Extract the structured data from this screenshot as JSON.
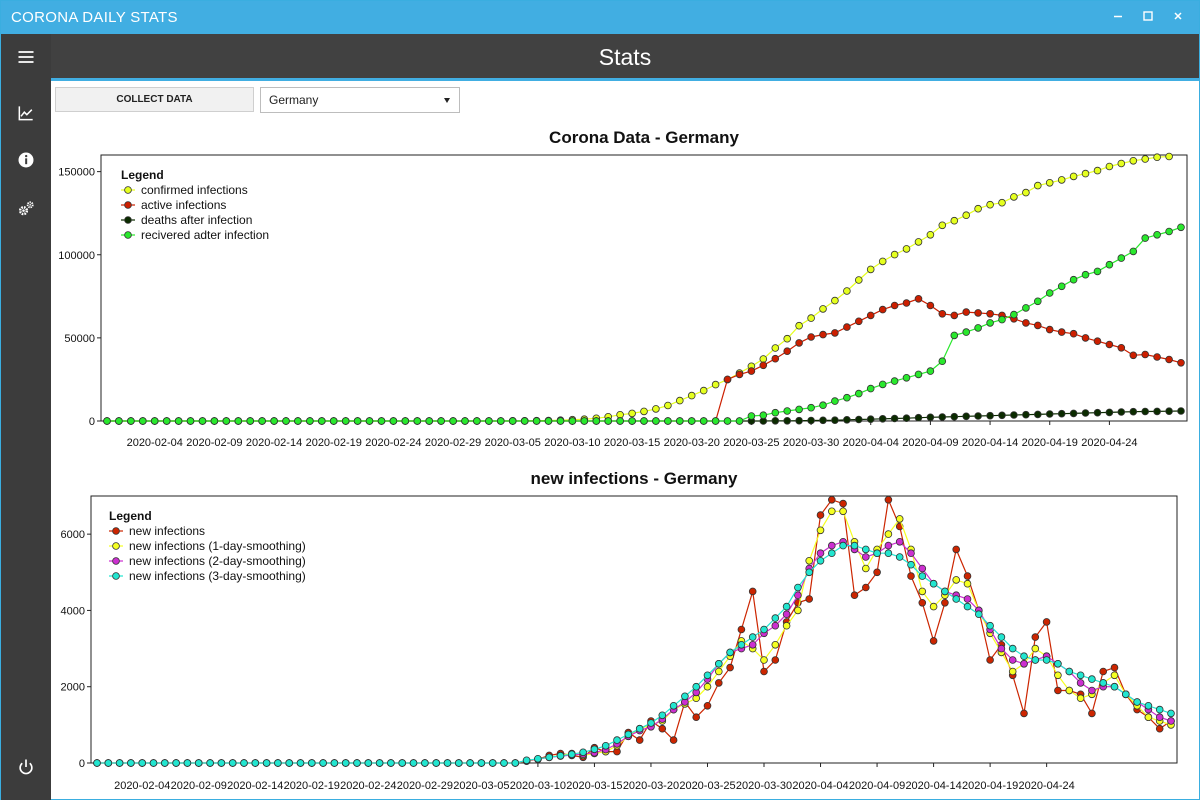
{
  "app": {
    "title": "CORONA DAILY STATS"
  },
  "window_controls": {
    "minimize_icon": "minimize-icon",
    "maximize_icon": "maximize-icon",
    "close_icon": "close-icon"
  },
  "sidebar": {
    "icons": [
      "menu-icon",
      "chart-line-icon",
      "info-icon",
      "settings-icon",
      "power-icon"
    ]
  },
  "header": {
    "title": "Stats"
  },
  "toolbar": {
    "collect_label": "COLLECT DATA",
    "country_value": "Germany"
  },
  "colors": {
    "titlebar": "#41aee2",
    "sidebar": "#3c3c3c",
    "header": "#414141",
    "confirmed": "#e5ff1f",
    "active": "#cc1f00",
    "deaths": "#0b2b00",
    "recovered": "#29e82d",
    "new": "#cc2500",
    "smooth1": "#f5ff22",
    "smooth2": "#cc2fd0",
    "smooth3": "#22e6d0"
  },
  "chart_data": [
    {
      "type": "line",
      "title": "Corona Data - Germany",
      "legend_title": "Legend",
      "legend_position": "top-left",
      "grid": false,
      "x_ticks": [
        "2020-02-04",
        "2020-02-09",
        "2020-02-14",
        "2020-02-19",
        "2020-02-24",
        "2020-02-29",
        "2020-03-05",
        "2020-03-10",
        "2020-03-15",
        "2020-03-20",
        "2020-03-25",
        "2020-03-30",
        "2020-04-04",
        "2020-04-09",
        "2020-04-14",
        "2020-04-19",
        "2020-04-24"
      ],
      "x_start": "2020-01-31",
      "y_ticks": [
        "0",
        "50000",
        "100000",
        "150000"
      ],
      "ylim": [
        0,
        160000
      ],
      "series": [
        {
          "name": "confirmed infections",
          "color": "#e5ff1f",
          "values": [
            0,
            0,
            0,
            0,
            0,
            0,
            0,
            0,
            0,
            0,
            0,
            0,
            0,
            0,
            0,
            0,
            0,
            0,
            0,
            0,
            0,
            0,
            0,
            0,
            0,
            0,
            0,
            0,
            0,
            0,
            0,
            0,
            0,
            0,
            100,
            150,
            200,
            300,
            500,
            800,
            1100,
            1600,
            2500,
            3700,
            4600,
            5800,
            7300,
            9300,
            12300,
            15300,
            18300,
            21900,
            24900,
            28900,
            32900,
            37300,
            43900,
            49500,
            57300,
            61900,
            67400,
            72400,
            78200,
            84800,
            91200,
            96000,
            100100,
            103500,
            107700,
            112000,
            117700,
            120500,
            123800,
            127700,
            130100,
            131300,
            134800,
            137400,
            141600,
            143300,
            145000,
            147100,
            148800,
            150600,
            153100,
            154900,
            156500,
            157600,
            158700,
            159100
          ]
        },
        {
          "name": "active infections",
          "color": "#cc1f00",
          "values": [
            0,
            0,
            0,
            0,
            0,
            0,
            0,
            0,
            0,
            0,
            0,
            0,
            0,
            0,
            0,
            0,
            0,
            0,
            0,
            0,
            0,
            0,
            0,
            0,
            0,
            0,
            0,
            0,
            0,
            0,
            0,
            0,
            0,
            0,
            0,
            0,
            0,
            0,
            0,
            0,
            0,
            0,
            0,
            0,
            0,
            0,
            0,
            0,
            0,
            0,
            0,
            0,
            25000,
            28000,
            30000,
            33500,
            37500,
            42000,
            47000,
            50500,
            52000,
            53000,
            56500,
            60000,
            63500,
            67000,
            69500,
            71000,
            73500,
            69500,
            64500,
            63500,
            65500,
            65000,
            64500,
            63500,
            61500,
            59000,
            57500,
            55000,
            53500,
            52500,
            50000,
            48000,
            46000,
            44000,
            39500,
            40000,
            38500,
            37000,
            35000
          ]
        },
        {
          "name": "deaths after infection",
          "color": "#0b2b00",
          "values": [
            0,
            0,
            0,
            0,
            0,
            0,
            0,
            0,
            0,
            0,
            0,
            0,
            0,
            0,
            0,
            0,
            0,
            0,
            0,
            0,
            0,
            0,
            0,
            0,
            0,
            0,
            0,
            0,
            0,
            0,
            0,
            0,
            0,
            0,
            0,
            0,
            0,
            0,
            0,
            0,
            0,
            0,
            0,
            0,
            0,
            0,
            0,
            0,
            0,
            0,
            0,
            0,
            0,
            0,
            0,
            0,
            100,
            150,
            200,
            300,
            400,
            500,
            700,
            900,
            1100,
            1300,
            1500,
            1700,
            2000,
            2200,
            2400,
            2600,
            2800,
            3000,
            3200,
            3400,
            3600,
            3800,
            4000,
            4200,
            4400,
            4600,
            4800,
            5000,
            5200,
            5400,
            5600,
            5700,
            5800,
            5900,
            6000
          ]
        },
        {
          "name": "recivered adter infection",
          "color": "#29e82d",
          "values": [
            0,
            0,
            0,
            0,
            0,
            0,
            0,
            0,
            0,
            0,
            0,
            0,
            0,
            0,
            0,
            0,
            0,
            0,
            0,
            0,
            0,
            0,
            0,
            0,
            0,
            0,
            0,
            0,
            0,
            0,
            0,
            0,
            0,
            0,
            0,
            0,
            0,
            0,
            0,
            0,
            0,
            0,
            0,
            0,
            0,
            0,
            0,
            0,
            0,
            0,
            0,
            0,
            0,
            0,
            3000,
            3500,
            5000,
            6000,
            7000,
            8000,
            9500,
            12000,
            14000,
            16500,
            19500,
            22000,
            24000,
            26000,
            28000,
            30000,
            36000,
            51500,
            53500,
            56000,
            59000,
            61000,
            64000,
            68000,
            72000,
            77000,
            81000,
            85000,
            88000,
            90000,
            94000,
            98000,
            102000,
            110000,
            112000,
            114000,
            116500
          ]
        }
      ]
    },
    {
      "type": "line",
      "title": "new infections - Germany",
      "legend_title": "Legend",
      "legend_position": "top-left",
      "grid": false,
      "x_ticks": [
        "2020-02-04",
        "2020-02-09",
        "2020-02-14",
        "2020-02-19",
        "2020-02-24",
        "2020-02-29",
        "2020-03-05",
        "2020-03-10",
        "2020-03-15",
        "2020-03-20",
        "2020-03-25",
        "2020-03-30",
        "2020-04-04",
        "2020-04-09",
        "2020-04-14",
        "2020-04-19",
        "2020-04-24"
      ],
      "x_start": "2020-01-31",
      "y_ticks": [
        "0",
        "2000",
        "4000",
        "6000"
      ],
      "ylim": [
        0,
        7000
      ],
      "series": [
        {
          "name": "new infections",
          "color": "#cc2500",
          "values": [
            0,
            0,
            0,
            0,
            0,
            0,
            0,
            0,
            0,
            0,
            0,
            0,
            0,
            0,
            0,
            0,
            0,
            0,
            0,
            0,
            0,
            0,
            0,
            0,
            0,
            0,
            0,
            0,
            0,
            0,
            0,
            0,
            0,
            0,
            0,
            0,
            0,
            0,
            50,
            100,
            200,
            250,
            200,
            150,
            400,
            300,
            300,
            800,
            600,
            1100,
            900,
            600,
            1600,
            1200,
            1500,
            2100,
            2500,
            3500,
            4500,
            2400,
            2700,
            3700,
            4200,
            4300,
            6500,
            6900,
            6800,
            4400,
            4600,
            5000,
            6900,
            6200,
            4900,
            4200,
            3200,
            4200,
            5600,
            4900,
            4000,
            2700,
            3100,
            2300,
            1300,
            3300,
            3700,
            1900,
            1900,
            1800,
            1300,
            2400,
            2500,
            1800,
            1400,
            1200,
            900,
            1100
          ]
        },
        {
          "name": "new infections (1-day-smoothing)",
          "color": "#f5ff22",
          "values": [
            0,
            0,
            0,
            0,
            0,
            0,
            0,
            0,
            0,
            0,
            0,
            0,
            0,
            0,
            0,
            0,
            0,
            0,
            0,
            0,
            0,
            0,
            0,
            0,
            0,
            0,
            0,
            0,
            0,
            0,
            0,
            0,
            0,
            0,
            0,
            0,
            0,
            0,
            50,
            100,
            150,
            200,
            250,
            200,
            250,
            300,
            450,
            700,
            900,
            1000,
            1100,
            1400,
            1550,
            1700,
            2000,
            2400,
            2800,
            3200,
            3000,
            2700,
            3100,
            3600,
            4000,
            5300,
            6100,
            6600,
            6600,
            5800,
            5100,
            5600,
            6000,
            6400,
            5600,
            4500,
            4100,
            4400,
            4800,
            4700,
            4000,
            3400,
            2900,
            2400,
            2600,
            3000,
            2800,
            2300,
            1900,
            1700,
            1800,
            2100,
            2300,
            1800,
            1500,
            1200,
            1100,
            1000
          ]
        },
        {
          "name": "new infections (2-day-smoothing)",
          "color": "#cc2fd0",
          "values": [
            0,
            0,
            0,
            0,
            0,
            0,
            0,
            0,
            0,
            0,
            0,
            0,
            0,
            0,
            0,
            0,
            0,
            0,
            0,
            0,
            0,
            0,
            0,
            0,
            0,
            0,
            0,
            0,
            0,
            0,
            0,
            0,
            0,
            0,
            0,
            0,
            0,
            0,
            60,
            100,
            150,
            180,
            210,
            230,
            270,
            350,
            500,
            700,
            850,
            950,
            1150,
            1400,
            1600,
            1850,
            2200,
            2600,
            2900,
            3000,
            3100,
            3400,
            3600,
            3900,
            4400,
            5100,
            5500,
            5700,
            5800,
            5600,
            5400,
            5500,
            5700,
            5800,
            5500,
            5100,
            4700,
            4500,
            4400,
            4300,
            4000,
            3500,
            3000,
            2700,
            2600,
            2700,
            2800,
            2600,
            2400,
            2100,
            1900,
            2000,
            2000,
            1800,
            1600,
            1400,
            1200,
            1100
          ]
        },
        {
          "name": "new infections (3-day-smoothing)",
          "color": "#22e6d0",
          "values": [
            0,
            0,
            0,
            0,
            0,
            0,
            0,
            0,
            0,
            0,
            0,
            0,
            0,
            0,
            0,
            0,
            0,
            0,
            0,
            0,
            0,
            0,
            0,
            0,
            0,
            0,
            0,
            0,
            0,
            0,
            0,
            0,
            0,
            0,
            0,
            0,
            0,
            0,
            70,
            110,
            150,
            190,
            230,
            280,
            360,
            450,
            600,
            750,
            900,
            1050,
            1250,
            1500,
            1750,
            2000,
            2300,
            2600,
            2900,
            3100,
            3300,
            3500,
            3800,
            4100,
            4600,
            5000,
            5300,
            5500,
            5700,
            5700,
            5600,
            5500,
            5500,
            5400,
            5200,
            4900,
            4700,
            4500,
            4300,
            4100,
            3900,
            3600,
            3300,
            3000,
            2800,
            2700,
            2700,
            2600,
            2400,
            2300,
            2200,
            2100,
            2000,
            1800,
            1600,
            1500,
            1400,
            1300
          ]
        }
      ]
    }
  ]
}
